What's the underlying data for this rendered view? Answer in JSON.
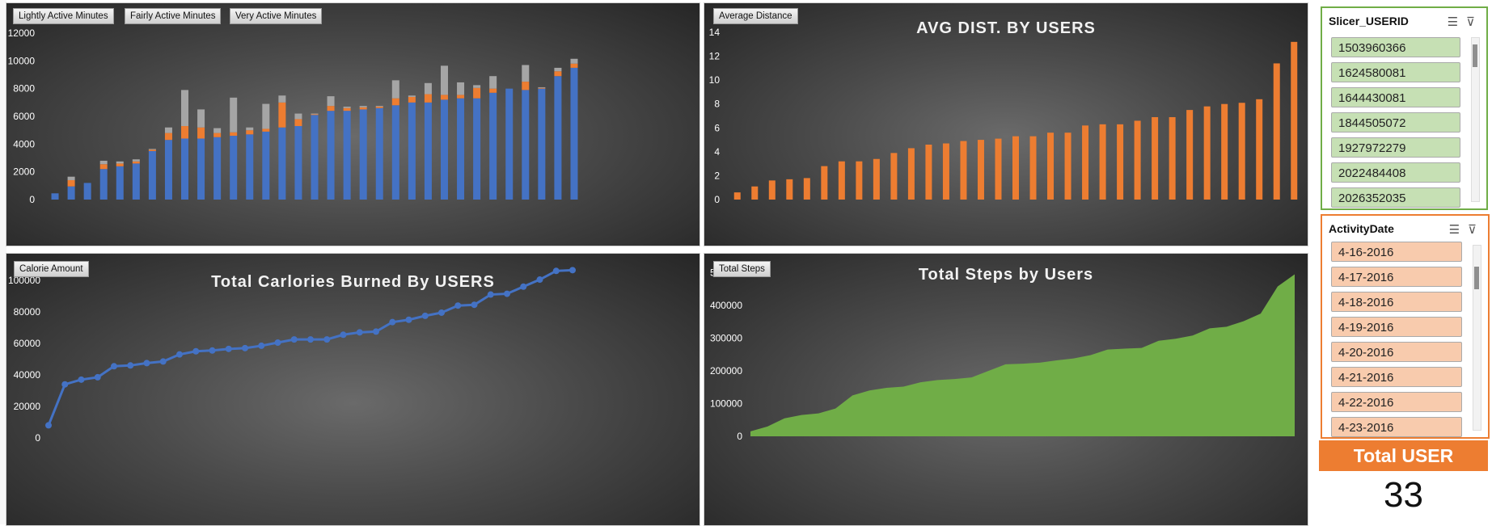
{
  "colors": {
    "blue": "#4472c4",
    "orange": "#ed7d31",
    "gray": "#a5a5a5",
    "green": "#70ad47",
    "slicer_green": "#c6e0b4",
    "slicer_orange": "#f8cbad",
    "panel_text": "#ffffff"
  },
  "activity_chart": {
    "legend": [
      "Lightly Active Minutes",
      "Fairly  Active Minutes",
      "Very Active Minutes"
    ]
  },
  "distance_chart": {
    "title": "AVG DIST. BY USERS",
    "legend": "Average Distance"
  },
  "calories_chart": {
    "title": "Total Carlories Burned By USERS",
    "legend": "Calorie  Amount"
  },
  "steps_chart": {
    "title": "Total Steps by Users",
    "legend": "Total Steps"
  },
  "chart_data": [
    {
      "type": "bar",
      "stacked": true,
      "ylim": [
        0,
        12000
      ],
      "yticks": [
        0,
        2000,
        4000,
        6000,
        8000,
        10000,
        12000
      ],
      "grid": false,
      "series": [
        {
          "name": "Lightly Active Minutes",
          "values": [
            450,
            950,
            1200,
            2200,
            2400,
            2600,
            3500,
            4300,
            4400,
            4400,
            4500,
            4600,
            4700,
            4900,
            5200,
            5300,
            6100,
            6400,
            6400,
            6500,
            6600,
            6800,
            7000,
            7000,
            7200,
            7300,
            7300,
            7700,
            8000,
            7900,
            8000,
            8900,
            9500
          ]
        },
        {
          "name": "Fairly  Active Minutes",
          "values": [
            0,
            450,
            0,
            350,
            200,
            150,
            100,
            500,
            900,
            800,
            300,
            250,
            300,
            200,
            1800,
            500,
            50,
            350,
            200,
            150,
            100,
            500,
            400,
            600,
            350,
            250,
            750,
            300,
            0,
            600,
            50,
            350,
            300
          ]
        },
        {
          "name": "Very Active Minutes",
          "values": [
            0,
            250,
            0,
            250,
            150,
            150,
            50,
            400,
            2600,
            1300,
            350,
            2500,
            200,
            1800,
            500,
            400,
            50,
            700,
            100,
            100,
            50,
            1300,
            100,
            800,
            2100,
            900,
            200,
            900,
            0,
            1200,
            50,
            250,
            350
          ]
        }
      ]
    },
    {
      "type": "bar",
      "ylim": [
        0,
        14
      ],
      "yticks": [
        0,
        2,
        4,
        6,
        8,
        10,
        12,
        14
      ],
      "grid": false,
      "series": [
        {
          "name": "Average Distance",
          "values": [
            0.6,
            1.1,
            1.6,
            1.7,
            1.8,
            2.8,
            3.2,
            3.2,
            3.4,
            3.9,
            4.3,
            4.6,
            4.7,
            4.9,
            5.0,
            5.1,
            5.3,
            5.3,
            5.6,
            5.6,
            6.2,
            6.3,
            6.3,
            6.6,
            6.9,
            6.9,
            7.5,
            7.8,
            8.0,
            8.1,
            8.4,
            11.4,
            13.2
          ]
        }
      ]
    },
    {
      "type": "line",
      "ylim": [
        0,
        120000
      ],
      "yticks": [
        0,
        20000,
        40000,
        60000,
        80000,
        100000,
        120000
      ],
      "grid": false,
      "series": [
        {
          "name": "Calorie  Amount",
          "values": [
            8000,
            34000,
            37000,
            38500,
            45500,
            46000,
            47500,
            48500,
            53000,
            55000,
            55500,
            56500,
            57000,
            58500,
            60500,
            62500,
            62500,
            62500,
            65500,
            67000,
            67500,
            73500,
            75000,
            77500,
            79500,
            84000,
            84500,
            91000,
            91500,
            96000,
            100500,
            106000,
            106500
          ]
        }
      ]
    },
    {
      "type": "area",
      "ylim": [
        0,
        600000
      ],
      "yticks": [
        0,
        100000,
        200000,
        300000,
        400000,
        500000,
        600000
      ],
      "grid": false,
      "series": [
        {
          "name": "Total Steps",
          "values": [
            15000,
            30000,
            55000,
            65000,
            70000,
            85000,
            125000,
            140000,
            148000,
            152000,
            165000,
            172000,
            175000,
            180000,
            200000,
            220000,
            222000,
            225000,
            232000,
            238000,
            248000,
            265000,
            268000,
            270000,
            292000,
            298000,
            308000,
            330000,
            335000,
            352000,
            375000,
            458000,
            495000
          ]
        }
      ]
    }
  ],
  "slicer_userid": {
    "title": "Slicer_USERID",
    "items": [
      "1503960366",
      "1624580081",
      "1644430081",
      "1844505072",
      "1927972279",
      "2022484408",
      "2026352035"
    ]
  },
  "slicer_date": {
    "title": "ActivityDate",
    "items": [
      "4-16-2016",
      "4-17-2016",
      "4-18-2016",
      "4-19-2016",
      "4-20-2016",
      "4-21-2016",
      "4-22-2016",
      "4-23-2016"
    ]
  },
  "total_user": {
    "label": "Total USER",
    "value": "33"
  }
}
